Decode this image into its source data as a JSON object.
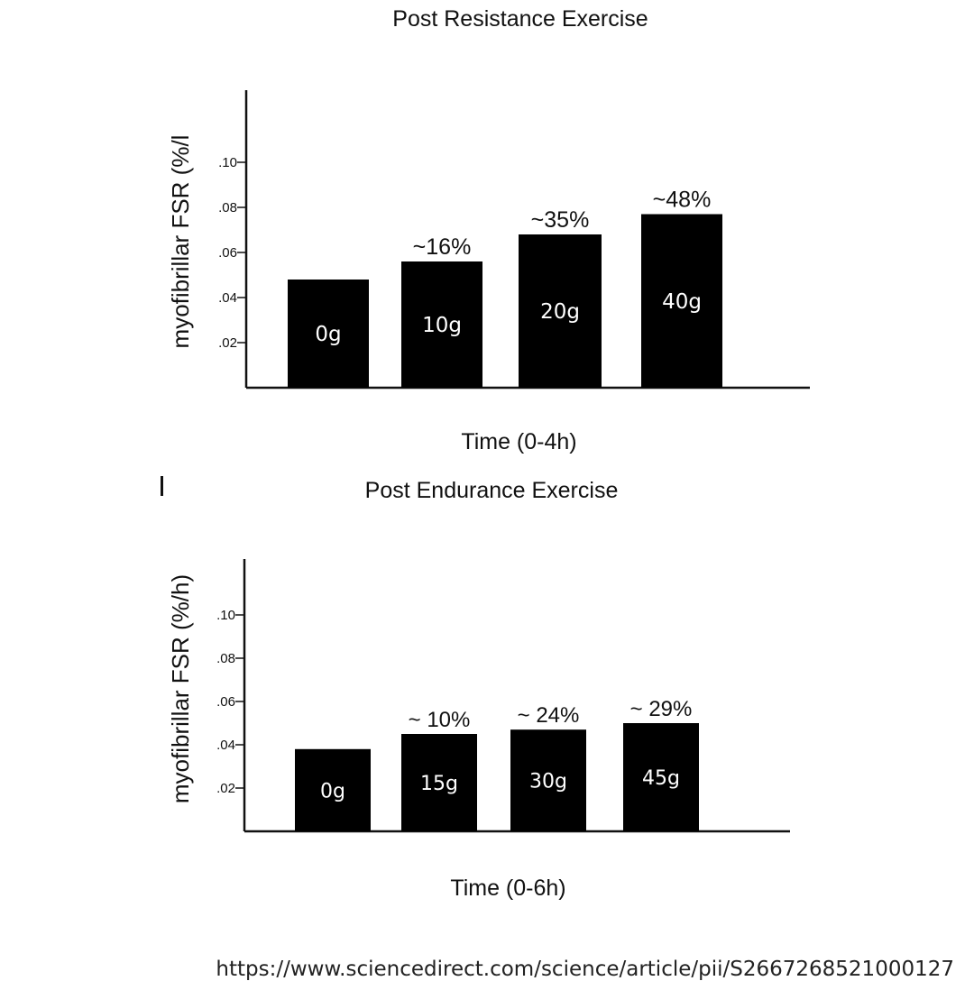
{
  "chart_data": [
    {
      "type": "bar",
      "title": "Post Resistance Exercise",
      "xlabel": "Time (0-4h)",
      "ylabel": "myofibrillar FSR (%/l",
      "yticks": [
        ".02",
        ".04",
        ".06",
        ".08",
        ".10"
      ],
      "ylim": [
        0,
        0.12
      ],
      "categories": [
        "0g",
        "10g",
        "20g",
        "40g"
      ],
      "values": [
        0.048,
        0.056,
        0.068,
        0.077
      ],
      "annotations": [
        "",
        "~16%",
        "~35%",
        "~48%"
      ],
      "grid": false,
      "legend": "none"
    },
    {
      "type": "bar",
      "title": "Post Endurance Exercise",
      "xlabel": "Time (0-6h)",
      "ylabel": "myofibrillar FSR (%/h)",
      "yticks": [
        ".02",
        ".04",
        ".06",
        ".08",
        ".10"
      ],
      "ylim": [
        0,
        0.12
      ],
      "categories": [
        "0g",
        "15g",
        "30g",
        "45g"
      ],
      "values": [
        0.038,
        0.045,
        0.047,
        0.05
      ],
      "annotations": [
        "",
        "~ 10%",
        "~ 24%",
        "~ 29%"
      ],
      "grid": false,
      "legend": "none"
    }
  ],
  "source_url": "https://www.sciencedirect.com/science/article/pii/S2667268521000127",
  "colors": {
    "bar": "#000000",
    "bar_label": "#ffffff",
    "axis": "#111111"
  }
}
